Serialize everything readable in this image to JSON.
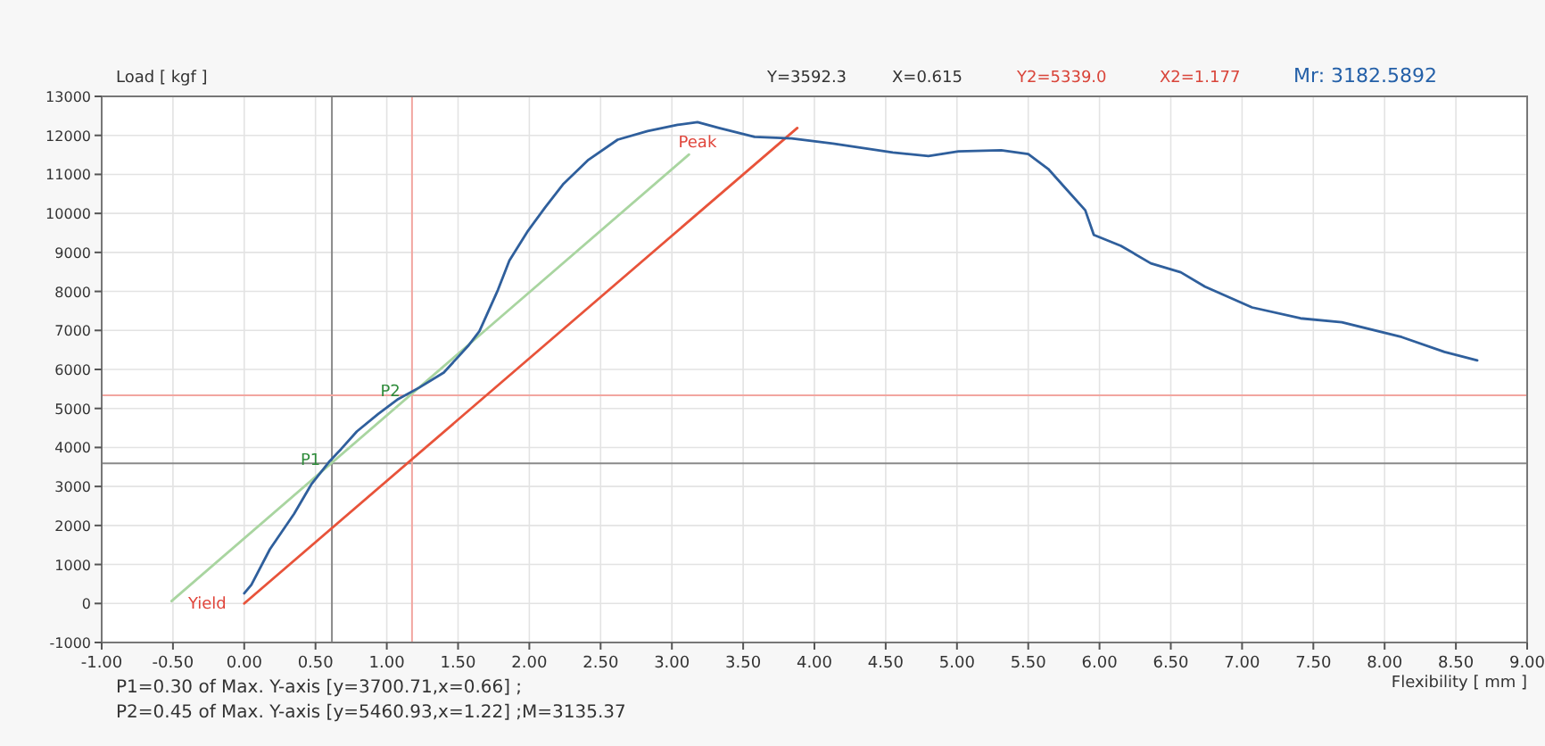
{
  "chart_data": {
    "type": "line",
    "xlabel": "Flexibility [ mm ]",
    "ylabel": "Load [ kgf ]",
    "xlim": [
      -1,
      9
    ],
    "ylim": [
      -1000,
      13000
    ],
    "xticks": [
      {
        "value": -1,
        "label": "-1.00"
      },
      {
        "value": -0.5,
        "label": "-0.50"
      },
      {
        "value": 0,
        "label": "0.00"
      },
      {
        "value": 0.5,
        "label": "0.50"
      },
      {
        "value": 1,
        "label": "1.00"
      },
      {
        "value": 1.5,
        "label": "1.50"
      },
      {
        "value": 2,
        "label": "2.00"
      },
      {
        "value": 2.5,
        "label": "2.50"
      },
      {
        "value": 3,
        "label": "3.00"
      },
      {
        "value": 3.5,
        "label": "3.50"
      },
      {
        "value": 4,
        "label": "4.00"
      },
      {
        "value": 4.5,
        "label": "4.50"
      },
      {
        "value": 5,
        "label": "5.00"
      },
      {
        "value": 5.5,
        "label": "5.50"
      },
      {
        "value": 6,
        "label": "6.00"
      },
      {
        "value": 6.5,
        "label": "6.50"
      },
      {
        "value": 7,
        "label": "7.00"
      },
      {
        "value": 7.5,
        "label": "7.50"
      },
      {
        "value": 8,
        "label": "8.00"
      },
      {
        "value": 8.5,
        "label": "8.50"
      },
      {
        "value": 9,
        "label": "9.00"
      }
    ],
    "yticks": [
      -1000,
      0,
      1000,
      2000,
      3000,
      4000,
      5000,
      6000,
      7000,
      8000,
      9000,
      10000,
      11000,
      12000,
      13000
    ],
    "grid": true,
    "marker": "none",
    "line_style": "solid",
    "series": [
      {
        "color": "#a9d5a0",
        "x": [
          -0.51,
          3.12
        ],
        "values": [
          60,
          11510
        ]
      },
      {
        "color": "#e8533a",
        "x": [
          0,
          3.88
        ],
        "values": [
          0,
          12190
        ]
      },
      {
        "color": "#2f5f9c",
        "x": [
          0,
          0.05,
          0.18,
          0.35,
          0.47,
          0.6,
          0.68,
          0.79,
          0.94,
          1.08,
          1.23,
          1.4,
          1.57,
          1.65,
          1.78,
          1.86,
          1.99,
          2.11,
          2.24,
          2.41,
          2.62,
          2.83,
          3.04,
          3.18,
          3.33,
          3.58,
          3.84,
          4.13,
          4.55,
          4.8,
          5.01,
          5.31,
          5.5,
          5.64,
          5.77,
          5.9,
          5.96,
          6.15,
          6.36,
          6.57,
          6.74,
          7.07,
          7.41,
          7.7,
          8.12,
          8.42,
          8.65
        ],
        "values": [
          260,
          480,
          1390,
          2300,
          3050,
          3650,
          3960,
          4410,
          4860,
          5240,
          5540,
          5920,
          6600,
          6980,
          8040,
          8790,
          9550,
          10150,
          10760,
          11360,
          11890,
          12110,
          12270,
          12340,
          12190,
          11960,
          11920,
          11790,
          11560,
          11470,
          11590,
          11620,
          11520,
          11140,
          10610,
          10080,
          9450,
          9170,
          8720,
          8490,
          8120,
          7590,
          7310,
          7210,
          6830,
          6450,
          6230
        ]
      }
    ],
    "ref_lines": [
      {
        "axis": "x",
        "value": 0.615,
        "color": "#8a8a8a"
      },
      {
        "axis": "y",
        "value": 3592.3,
        "color": "#8a8a8a"
      },
      {
        "axis": "x",
        "value": 1.177,
        "color": "#f2a6a0"
      },
      {
        "axis": "y",
        "value": 5339.0,
        "color": "#f2a6a0"
      }
    ],
    "annotations": [
      "Y=3592.3",
      "X=0.615",
      "Y2=5339.0",
      "X2=1.177",
      "Mr:  3182.5892",
      {
        "text": "Peak",
        "x": 3.18,
        "y": 12340
      },
      {
        "text": "Yield",
        "x": 0,
        "y": 0
      },
      {
        "text": "P1",
        "x": 0.66,
        "y": 3700.71
      },
      {
        "text": "P2",
        "x": 1.22,
        "y": 5460.93
      },
      "P1=0.30 of Max. Y-axis [y=3700.71,x=0.66] ;",
      "P2=0.45 of Max. Y-axis [y=5460.93,x=1.22] ;M=3135.37"
    ]
  }
}
